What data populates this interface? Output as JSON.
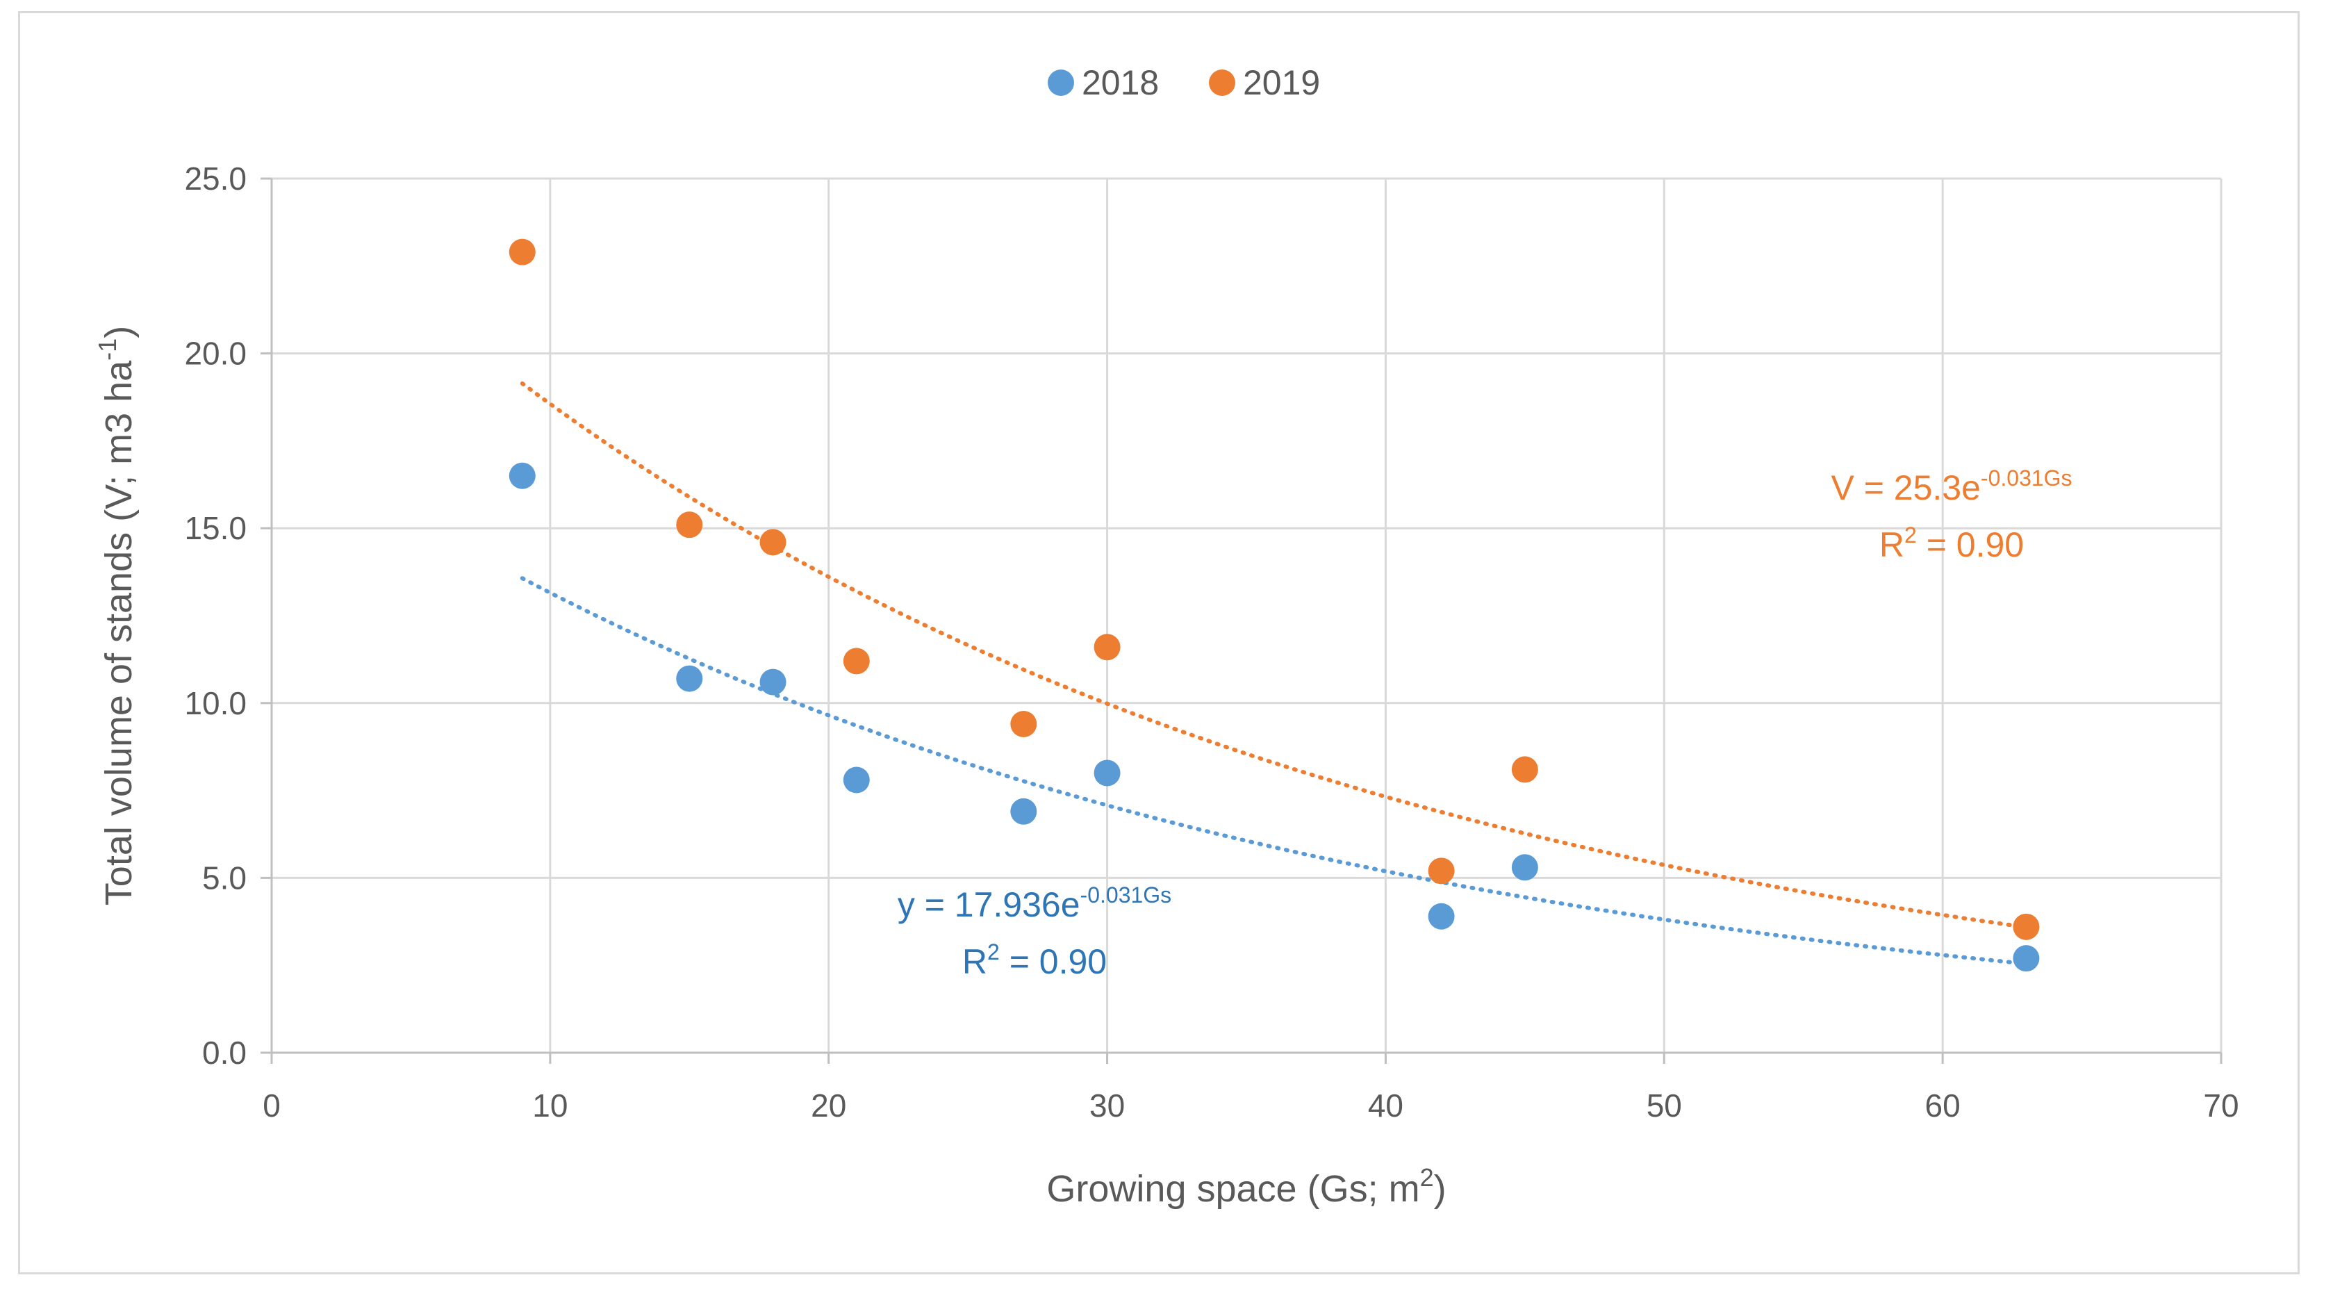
{
  "chart_data": {
    "type": "scatter",
    "title": "",
    "xlabel": {
      "main": "Growing space (Gs; m",
      "sup": "2",
      "end": ")"
    },
    "ylabel": {
      "main": "Total volume of stands (V; m3 ha",
      "sup": "-1",
      "end": ")"
    },
    "xlim": [
      0,
      70
    ],
    "ylim": [
      0,
      25
    ],
    "xticks": [
      0,
      10,
      20,
      30,
      40,
      50,
      60,
      70
    ],
    "yticks": [
      0,
      5,
      10,
      15,
      20,
      25
    ],
    "ytick_labels": [
      "0.0",
      "5.0",
      "10.0",
      "15.0",
      "20.0",
      "25.0"
    ],
    "grid": true,
    "legend_position": "top-center",
    "series": [
      {
        "name": "2018",
        "color": "#5B9BD5",
        "label_color": "#2E75B6",
        "x": [
          9,
          15,
          18,
          21,
          27,
          30,
          42,
          45,
          63
        ],
        "y": [
          16.5,
          10.7,
          10.6,
          7.8,
          6.9,
          8.0,
          3.9,
          5.3,
          2.7
        ],
        "trendline": {
          "type": "exponential",
          "a": 17.936,
          "b": -0.031,
          "x_range": [
            9,
            63
          ]
        },
        "equation": {
          "prefix": "y = 17.936e",
          "exp": "-0.031Gs",
          "r2_prefix": "R",
          "r2_sup": "2",
          "r2_suffix": " = 0.90"
        }
      },
      {
        "name": "2019",
        "color": "#ED7D31",
        "label_color": "#ED7D31",
        "x": [
          9,
          15,
          18,
          21,
          27,
          30,
          42,
          45,
          63
        ],
        "y": [
          22.9,
          15.1,
          14.6,
          11.2,
          9.4,
          11.6,
          5.2,
          8.1,
          3.6
        ],
        "trendline": {
          "type": "exponential",
          "a": 25.3,
          "b": -0.031,
          "x_range": [
            9,
            63
          ]
        },
        "equation": {
          "prefix": "V = 25.3e",
          "exp": "-0.031Gs",
          "r2_prefix": "R",
          "r2_sup": "2",
          "r2_suffix": " = 0.90"
        }
      }
    ]
  }
}
